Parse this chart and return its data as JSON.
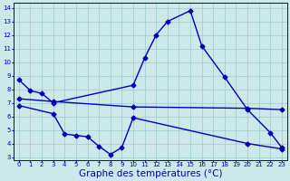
{
  "background_color": "#cce8e8",
  "grid_color": "#99cccc",
  "line_color": "#0000bb",
  "xlabel": "Graphe des températures (°C)",
  "xlabel_fontsize": 7.5,
  "ylim": [
    2.8,
    14.4
  ],
  "xlim": [
    -0.5,
    23.5
  ],
  "yticks": [
    3,
    4,
    5,
    6,
    7,
    8,
    9,
    10,
    11,
    12,
    13,
    14
  ],
  "xticks": [
    0,
    1,
    2,
    3,
    4,
    5,
    6,
    7,
    8,
    9,
    10,
    11,
    12,
    13,
    14,
    15,
    16,
    17,
    18,
    19,
    20,
    21,
    22,
    23
  ],
  "curve1_x": [
    0,
    1,
    2,
    3,
    10,
    11,
    12,
    13,
    15,
    16,
    18,
    20,
    22,
    23
  ],
  "curve1_y": [
    8.7,
    7.9,
    7.7,
    7.0,
    8.3,
    10.3,
    12.0,
    13.0,
    13.8,
    11.2,
    8.9,
    6.5,
    4.8,
    3.7
  ],
  "curve2_x": [
    0,
    3,
    10,
    20,
    23
  ],
  "curve2_y": [
    7.3,
    7.1,
    6.7,
    6.6,
    6.5
  ],
  "curve3_x": [
    0,
    3,
    4,
    5,
    6,
    7,
    8,
    9,
    10,
    20,
    23
  ],
  "curve3_y": [
    6.8,
    6.2,
    4.7,
    4.6,
    4.5,
    3.8,
    3.2,
    3.7,
    5.9,
    4.0,
    3.6
  ],
  "lw": 1.0,
  "ms": 2.5
}
